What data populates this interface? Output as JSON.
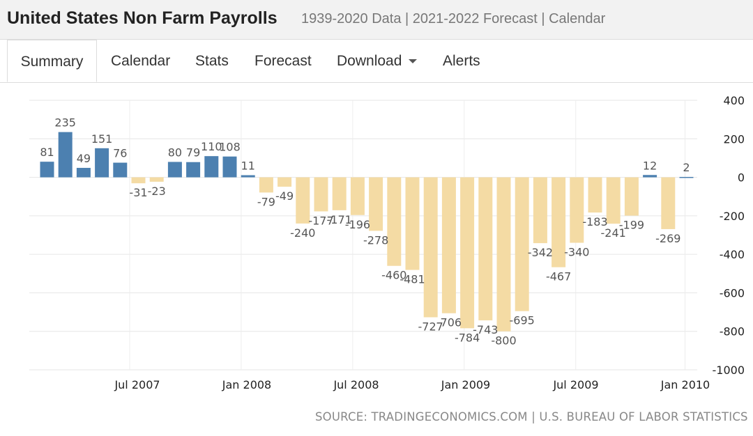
{
  "header": {
    "title": "United States Non Farm Payrolls",
    "subtitle": "1939-2020 Data | 2021-2022 Forecast | Calendar"
  },
  "tabs": [
    {
      "label": "Summary",
      "active": true
    },
    {
      "label": "Calendar",
      "active": false
    },
    {
      "label": "Stats",
      "active": false
    },
    {
      "label": "Forecast",
      "active": false
    },
    {
      "label": "Download",
      "active": false,
      "dropdown": true
    },
    {
      "label": "Alerts",
      "active": false
    }
  ],
  "source": "SOURCE: TRADINGECONOMICS.COM | U.S. BUREAU OF LABOR STATISTICS",
  "chart_data": {
    "type": "bar",
    "title": "",
    "xlabel": "",
    "ylabel": "",
    "ylim": [
      -1000,
      400
    ],
    "yticks": [
      400,
      200,
      0,
      -200,
      -400,
      -600,
      -800,
      -1000
    ],
    "x_tick_labels": [
      "Jul 2007",
      "Jan 2008",
      "Jul 2008",
      "Jan 2009",
      "Jul 2009",
      "Jan 2010"
    ],
    "grid": true,
    "positive_color": "#4c80b0",
    "negative_color": "#f4dba4",
    "categories": [
      "2007-02",
      "2007-03",
      "2007-04",
      "2007-05",
      "2007-06",
      "2007-07",
      "2007-08",
      "2007-09",
      "2007-10",
      "2007-11",
      "2007-12",
      "2008-01",
      "2008-02",
      "2008-03",
      "2008-04",
      "2008-05",
      "2008-06",
      "2008-07",
      "2008-08",
      "2008-09",
      "2008-10",
      "2008-11",
      "2008-12",
      "2009-01",
      "2009-02",
      "2009-03",
      "2009-04",
      "2009-05",
      "2009-06",
      "2009-07",
      "2009-08",
      "2009-09",
      "2009-10",
      "2009-11",
      "2009-12",
      "2010-01"
    ],
    "values": [
      81,
      235,
      49,
      151,
      76,
      -31,
      -23,
      80,
      79,
      110,
      108,
      11,
      -79,
      -49,
      -240,
      -177,
      -171,
      -196,
      -278,
      -460,
      -481,
      -727,
      -706,
      -784,
      -743,
      -800,
      -695,
      -342,
      -467,
      -340,
      -183,
      -241,
      -199,
      12,
      -269,
      2
    ],
    "data_labels": [
      "81",
      "235",
      "49",
      "151",
      "76",
      "-31",
      "-23",
      "80",
      "79",
      "110",
      "108",
      "11",
      "-79",
      "-49",
      "-240",
      "-177",
      "-171",
      "-196",
      "-278",
      "-460",
      "-481",
      "-727",
      "-706",
      "-784",
      "-743",
      "-800",
      "-695",
      "-342",
      "-467",
      "-340",
      "-183",
      "-241",
      "-199",
      "12",
      "-269",
      "2"
    ]
  }
}
